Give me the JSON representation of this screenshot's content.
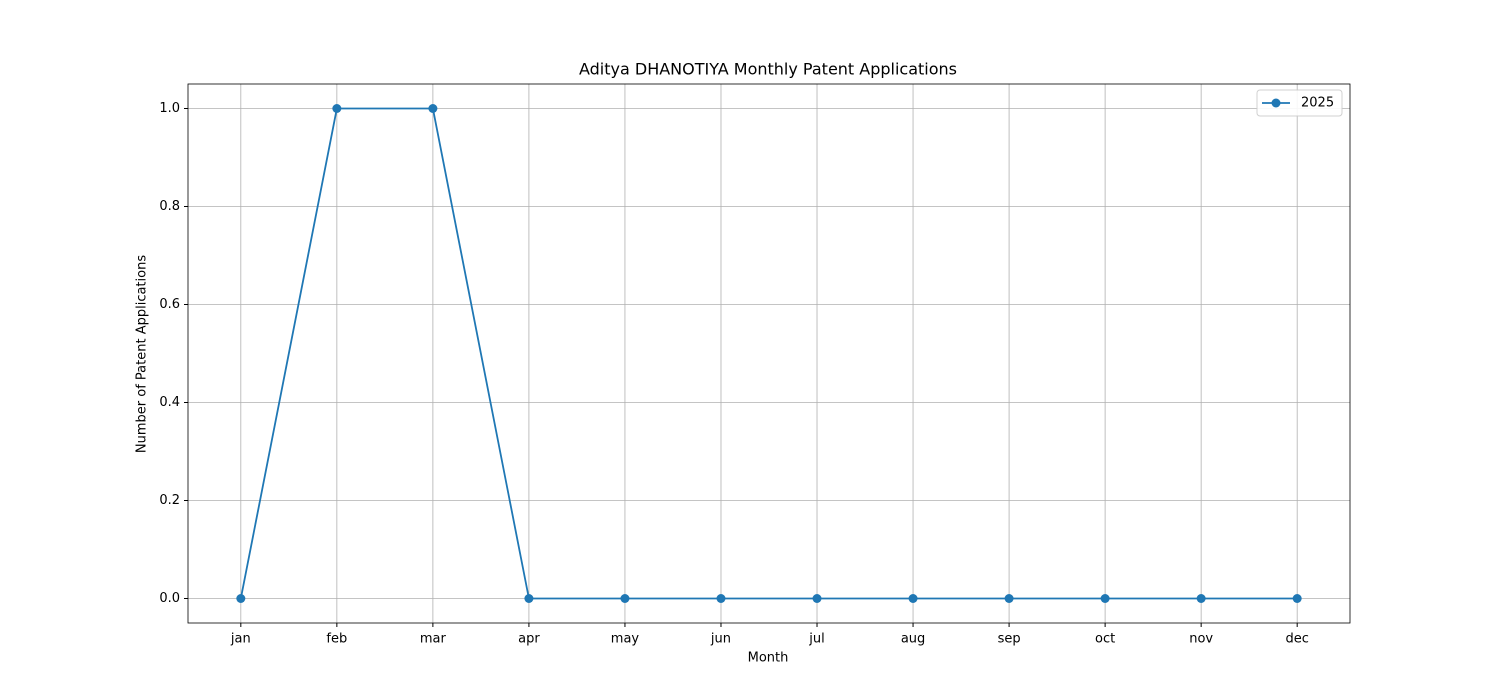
{
  "chart_data": {
    "type": "line",
    "title": "Aditya DHANOTIYA Monthly Patent Applications",
    "x_label": "Month",
    "y_label": "Number of Patent Applications",
    "categories": [
      "jan",
      "feb",
      "mar",
      "apr",
      "may",
      "jun",
      "jul",
      "aug",
      "sep",
      "oct",
      "nov",
      "dec"
    ],
    "series": [
      {
        "name": "2025",
        "color": "#1f77b4",
        "values": [
          0,
          1,
          1,
          0,
          0,
          0,
          0,
          0,
          0,
          0,
          0,
          0
        ]
      }
    ],
    "ylim": [
      -0.05,
      1.05
    ],
    "yticks": [
      {
        "value": 0,
        "label": "0.0"
      },
      0.2,
      0.4,
      0.6,
      0.8,
      {
        "value": 1,
        "label": "1.0"
      }
    ],
    "grid": true,
    "legend": "upper right"
  }
}
